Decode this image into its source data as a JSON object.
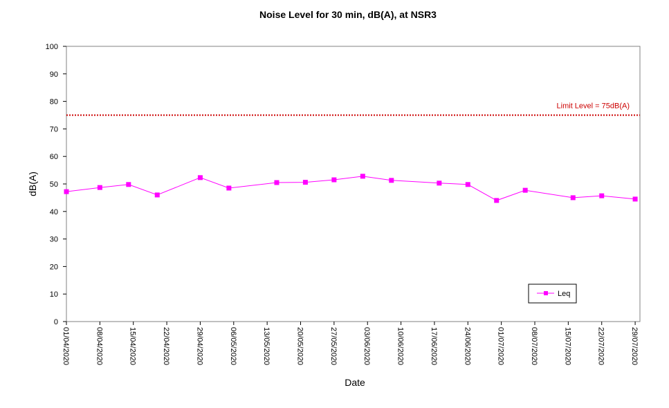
{
  "chart_data": {
    "type": "line",
    "title": "Noise Level for 30 min, dB(A), at NSR3",
    "xlabel": "Date",
    "ylabel": "dB(A)",
    "ylim": [
      0,
      100
    ],
    "y_ticks": [
      0,
      10,
      20,
      30,
      40,
      50,
      60,
      70,
      80,
      90,
      100
    ],
    "xlim": [
      "01/04/2020",
      "30/07/2020"
    ],
    "x_ticks": [
      "01/04/2020",
      "08/04/2020",
      "15/04/2020",
      "22/04/2020",
      "29/04/2020",
      "06/05/2020",
      "13/05/2020",
      "20/05/2020",
      "27/05/2020",
      "03/06/2020",
      "10/06/2020",
      "17/06/2020",
      "24/06/2020",
      "01/07/2020",
      "08/07/2020",
      "15/07/2020",
      "22/07/2020",
      "29/07/2020"
    ],
    "grid": false,
    "legend_position": "bottom-right",
    "series": [
      {
        "name": "Leq",
        "color": "#FF00FF",
        "marker": "square",
        "x": [
          "01/04/2020",
          "08/04/2020",
          "14/04/2020",
          "20/04/2020",
          "29/04/2020",
          "05/05/2020",
          "15/05/2020",
          "21/05/2020",
          "27/05/2020",
          "02/06/2020",
          "08/06/2020",
          "18/06/2020",
          "24/06/2020",
          "30/06/2020",
          "06/07/2020",
          "16/07/2020",
          "22/07/2020",
          "29/07/2020"
        ],
        "values": [
          47.2,
          48.7,
          49.8,
          46.0,
          52.3,
          48.5,
          50.5,
          50.6,
          51.5,
          52.8,
          51.3,
          50.3,
          49.8,
          44.0,
          47.7,
          45.0,
          45.7,
          44.5
        ]
      }
    ],
    "reference_lines": [
      {
        "label": "Limit Level  = 75dB(A)",
        "value": 75,
        "color": "#CC0000",
        "style": "dotted"
      }
    ]
  }
}
